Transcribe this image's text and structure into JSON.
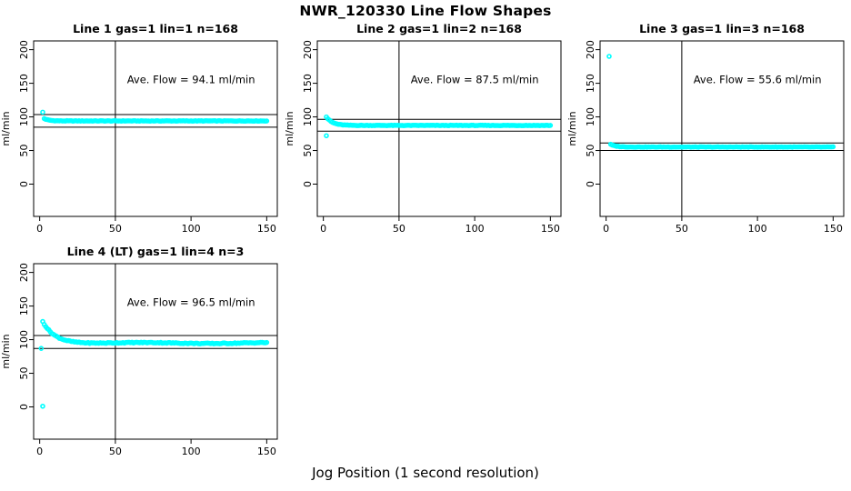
{
  "page": {
    "main_title": "NWR_120330  Line Flow Shapes",
    "x_axis_label": "Jog Position (1 second resolution)",
    "background_color": "#ffffff"
  },
  "chart_data": {
    "type": "scatter",
    "point_color": "#00ffff",
    "axis_color": "#000000",
    "ref_line_color": "#000000",
    "ylabel": "ml/min",
    "x_ticks": [
      0,
      50,
      100,
      150
    ],
    "y_ticks": [
      0,
      50,
      100,
      150,
      200
    ],
    "xlim": [
      -4,
      157
    ],
    "ylim": [
      -48,
      213
    ],
    "vline_x": 50,
    "annotation_anchor": {
      "x": 100,
      "y": 150
    },
    "plots": [
      {
        "title": "Line 1 gas=1 lin=1 n=168",
        "ave_flow": 94.1,
        "annotation": "Ave. Flow =  94.1  ml/min",
        "ref_lines": [
          103.5,
          84.7
        ],
        "n": 168,
        "series_model": {
          "x_start": 3,
          "x_end": 150,
          "start_y": 97.5,
          "plateau": 94.0,
          "tau": 3.0,
          "noise": 0.7,
          "wobble": 0.0,
          "outliers": [
            [
              2,
              107
            ]
          ]
        }
      },
      {
        "title": "Line 2 gas=1 lin=2 n=168",
        "ave_flow": 87.5,
        "annotation": "Ave. Flow =  87.5  ml/min",
        "ref_lines": [
          96.3,
          78.8
        ],
        "n": 168,
        "series_model": {
          "x_start": 2,
          "x_end": 150,
          "start_y": 100.0,
          "plateau": 87.3,
          "tau": 4.0,
          "noise": 0.7,
          "wobble": 0.0,
          "outliers": [
            [
              2,
              72
            ]
          ]
        }
      },
      {
        "title": "Line 3 gas=1 lin=3 n=168",
        "ave_flow": 55.6,
        "annotation": "Ave. Flow =  55.6  ml/min",
        "ref_lines": [
          61.2,
          50.0
        ],
        "n": 168,
        "series_model": {
          "x_start": 3,
          "x_end": 150,
          "start_y": 59.0,
          "plateau": 55.2,
          "tau": 3.5,
          "noise": 0.7,
          "wobble": 0.0,
          "outliers": [
            [
              2,
              190
            ]
          ]
        }
      },
      {
        "title": "Line 4 (LT) gas=1 lin=4 n=3",
        "ave_flow": 96.5,
        "annotation": "Ave. Flow =  96.5  ml/min",
        "ref_lines": [
          106.2,
          86.9
        ],
        "n": 3,
        "series_model": {
          "x_start": 2,
          "x_end": 150,
          "start_y": 127.0,
          "plateau": 95.0,
          "tau": 8.0,
          "noise": 1.3,
          "wobble": 0.7,
          "outliers": [
            [
              1,
              87
            ],
            [
              2,
              1
            ]
          ]
        }
      }
    ]
  }
}
